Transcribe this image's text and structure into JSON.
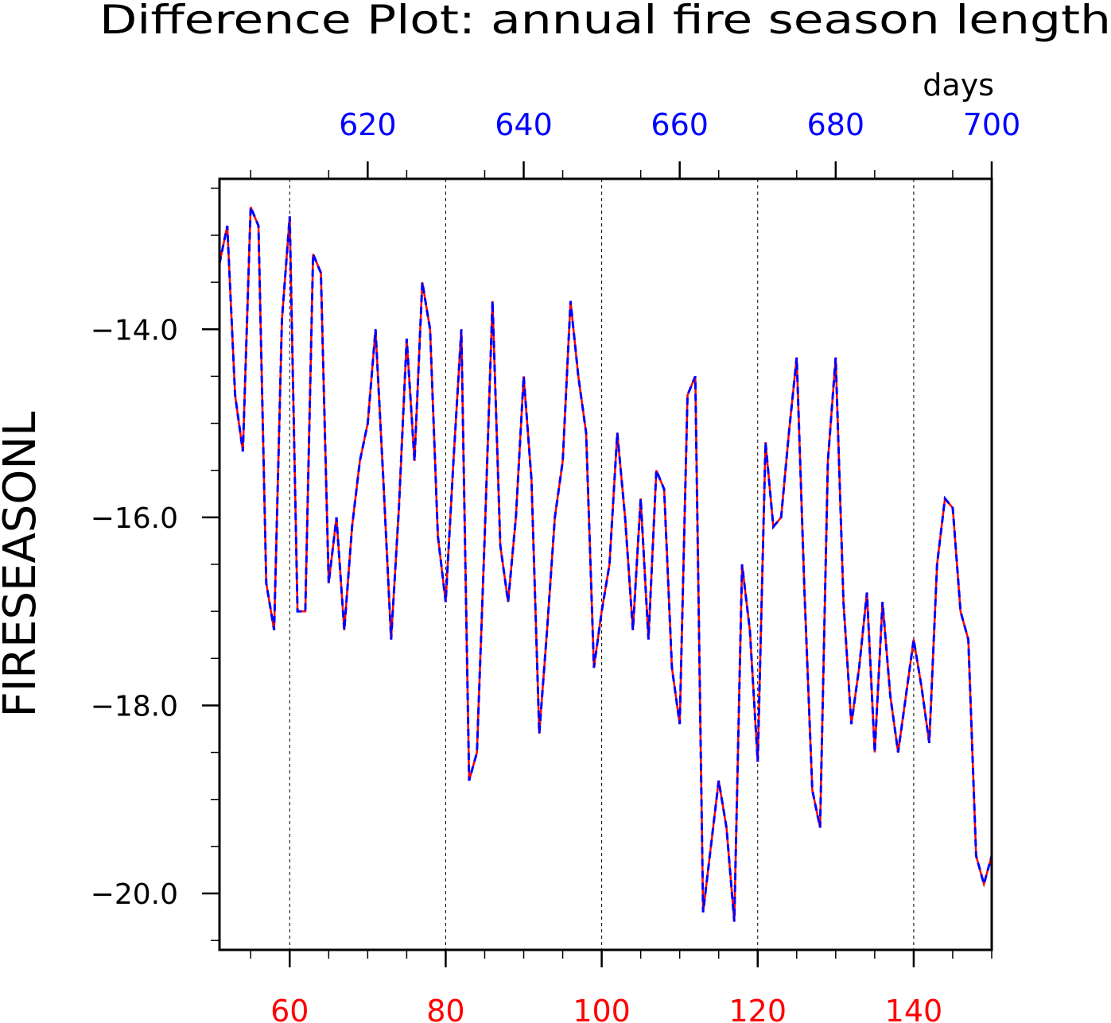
{
  "chart_data": {
    "type": "line",
    "title": "Difference Plot: annual fire season length",
    "units": "days",
    "ylabel": "FIRESEASONL",
    "xlabel": "",
    "x_range": [
      51,
      150
    ],
    "ylim": [
      -20.6,
      -12.4
    ],
    "yticks": [
      -14.0,
      -16.0,
      -18.0,
      -20.0
    ],
    "ytick_labels": [
      "−14.0",
      "−16.0",
      "−18.0",
      "−20.0"
    ],
    "ytick_minor": [
      -12.5,
      -13.0,
      -13.5,
      -14.5,
      -15.0,
      -15.5,
      -16.5,
      -17.0,
      -17.5,
      -18.5,
      -19.0,
      -19.5,
      -20.5
    ],
    "xticks_bottom": [
      60,
      80,
      100,
      120,
      140
    ],
    "xticks_bottom_labels": [
      "60",
      "80",
      "100",
      "120",
      "140"
    ],
    "xtick_bottom_minor": [
      55,
      65,
      70,
      75,
      85,
      90,
      95,
      105,
      110,
      115,
      125,
      130,
      135,
      145,
      150
    ],
    "xticks_top": [
      620,
      640,
      660,
      680,
      700
    ],
    "xticks_top_labels": [
      "620",
      "640",
      "660",
      "680",
      "700"
    ],
    "top_axis_offset": 550,
    "grid": "dashed vertical at major bottom ticks",
    "colors": {
      "bottom_axis": "#ff0000",
      "top_axis": "#0000ff",
      "series_a": "#ff0000",
      "series_b": "#0000ff"
    },
    "x": [
      51,
      52,
      53,
      54,
      55,
      56,
      57,
      58,
      59,
      60,
      61,
      62,
      63,
      64,
      65,
      66,
      67,
      68,
      69,
      70,
      71,
      72,
      73,
      74,
      75,
      76,
      77,
      78,
      79,
      80,
      81,
      82,
      83,
      84,
      85,
      86,
      87,
      88,
      89,
      90,
      91,
      92,
      93,
      94,
      95,
      96,
      97,
      98,
      99,
      100,
      101,
      102,
      103,
      104,
      105,
      106,
      107,
      108,
      109,
      110,
      111,
      112,
      113,
      114,
      115,
      116,
      117,
      118,
      119,
      120,
      121,
      122,
      123,
      124,
      125,
      126,
      127,
      128,
      129,
      130,
      131,
      132,
      133,
      134,
      135,
      136,
      137,
      138,
      139,
      140,
      141,
      142,
      143,
      144,
      145,
      146,
      147,
      148,
      149,
      150
    ],
    "series": [
      {
        "values": [
          -13.3,
          -12.9,
          -14.7,
          -15.3,
          -12.7,
          -12.9,
          -16.7,
          -17.2,
          -13.9,
          -12.8,
          -17.0,
          -17.0,
          -13.2,
          -13.4,
          -16.7,
          -16.0,
          -17.2,
          -16.1,
          -15.4,
          -15.0,
          -14.0,
          -15.6,
          -17.3,
          -15.9,
          -14.1,
          -15.4,
          -13.5,
          -14.0,
          -16.2,
          -16.9,
          -15.4,
          -14.0,
          -18.8,
          -18.5,
          -16.2,
          -13.7,
          -16.3,
          -16.9,
          -16.0,
          -14.5,
          -15.6,
          -18.3,
          -17.2,
          -16.0,
          -15.4,
          -13.7,
          -14.5,
          -15.1,
          -17.6,
          -17.0,
          -16.5,
          -15.1,
          -16.0,
          -17.2,
          -15.8,
          -17.3,
          -15.5,
          -15.7,
          -17.6,
          -18.2,
          -14.7,
          -14.5,
          -20.2,
          -19.5,
          -18.8,
          -19.3,
          -20.3,
          -16.5,
          -17.2,
          -18.6,
          -15.2,
          -16.1,
          -16.0,
          -15.1,
          -14.3,
          -16.8,
          -18.9,
          -19.3,
          -15.4,
          -14.3,
          -16.9,
          -18.2,
          -17.6,
          -16.8,
          -18.5,
          -16.9,
          -17.9,
          -18.5,
          -17.9,
          -17.3,
          -17.8,
          -18.4,
          -16.5,
          -15.8,
          -15.9,
          -17.0,
          -17.3,
          -19.6,
          -19.9,
          -19.6
        ]
      }
    ]
  }
}
